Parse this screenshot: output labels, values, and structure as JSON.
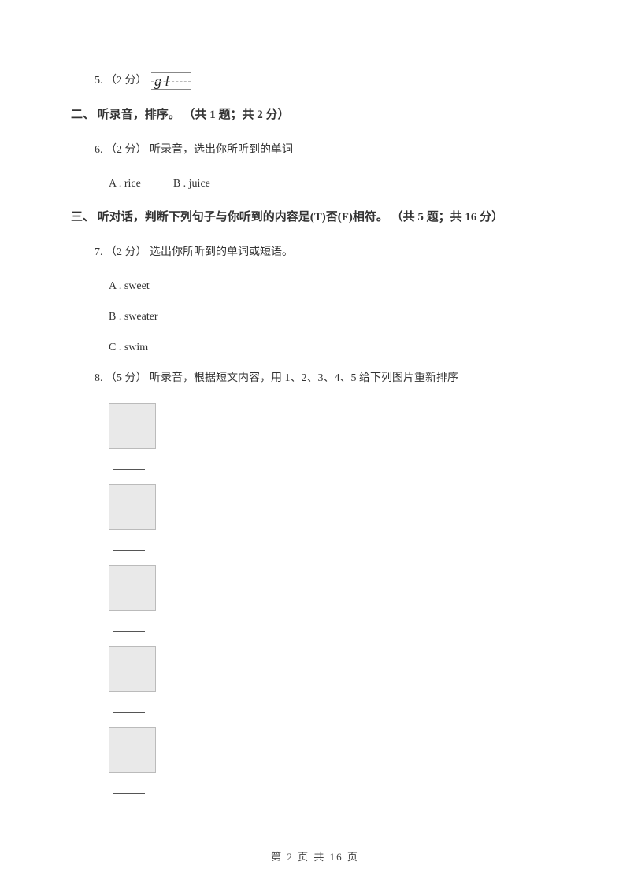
{
  "q5": {
    "num": "5.",
    "points": "（2 分）",
    "cursive": "g  l"
  },
  "section2": {
    "heading": "二、 听录音，排序。 （共 1 题；共 2 分）",
    "q6": {
      "num": "6.",
      "points": "（2 分）",
      "text": "听录音，选出你所听到的单词",
      "optA": "A . rice",
      "optB": "B . juice"
    }
  },
  "section3": {
    "heading": "三、 听对话，判断下列句子与你听到的内容是(T)否(F)相符。 （共 5 题；共 16 分）",
    "q7": {
      "num": "7.",
      "points": "（2 分）",
      "text": "选出你所听到的单词或短语。",
      "optA": "A . sweet",
      "optB": "B . sweater",
      "optC": "C . swim"
    },
    "q8": {
      "num": "8.",
      "points": "（5 分）",
      "text": "听录音，根据短文内容，用 1、2、3、4、5 给下列图片重新排序"
    }
  },
  "footer": {
    "prefix": "第",
    "current": "2",
    "mid": "页 共",
    "total": "16",
    "suffix": "页"
  }
}
